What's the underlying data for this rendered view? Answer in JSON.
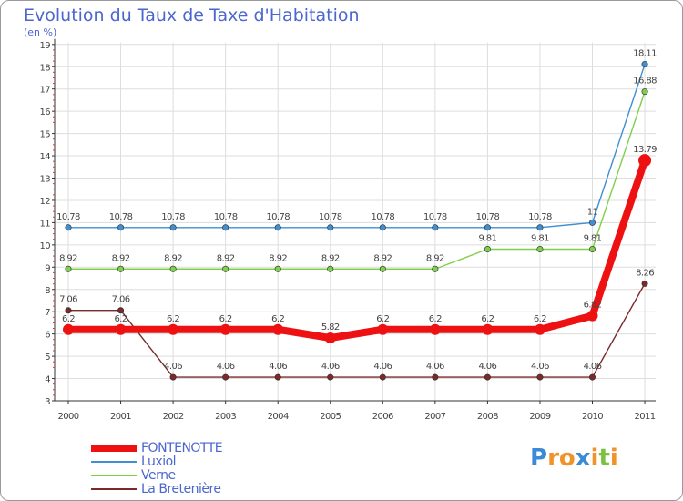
{
  "title": "Evolution du Taux de Taxe d'Habitation",
  "subtitle": "(en %)",
  "chart_data": {
    "type": "line",
    "title": "Evolution du Taux de Taxe d'Habitation",
    "ylabel": "(en %)",
    "x": [
      "2000",
      "2001",
      "2002",
      "2003",
      "2004",
      "2005",
      "2006",
      "2007",
      "2008",
      "2009",
      "2010",
      "2011"
    ],
    "ylim": [
      3,
      19
    ],
    "yticks": [
      3,
      4,
      5,
      6,
      7,
      8,
      9,
      10,
      11,
      12,
      13,
      14,
      15,
      16,
      17,
      18,
      19
    ],
    "series": [
      {
        "name": "Luxiol",
        "color": "#3f8fd1",
        "values": [
          10.78,
          10.78,
          10.78,
          10.78,
          10.78,
          10.78,
          10.78,
          10.78,
          10.78,
          10.78,
          11,
          18.11
        ],
        "labels": [
          "10.78",
          "10.78",
          "10.78",
          "10.78",
          "10.78",
          "10.78",
          "10.78",
          "10.78",
          "10.78",
          "10.78",
          "11",
          "18.11"
        ]
      },
      {
        "name": "Verne",
        "color": "#7ed04a",
        "values": [
          8.92,
          8.92,
          8.92,
          8.92,
          8.92,
          8.92,
          8.92,
          8.92,
          9.81,
          9.81,
          9.81,
          16.88
        ],
        "labels": [
          "8.92",
          "8.92",
          "8.92",
          "8.92",
          "8.92",
          "8.92",
          "8.92",
          "8.92",
          "9.81",
          "9.81",
          "9.81",
          "16.88"
        ]
      },
      {
        "name": "La Bretenière",
        "color": "#7a2a2a",
        "values": [
          7.06,
          7.06,
          4.06,
          4.06,
          4.06,
          4.06,
          4.06,
          4.06,
          4.06,
          4.06,
          4.06,
          8.26
        ],
        "labels": [
          "7.06",
          "7.06",
          "4.06",
          "4.06",
          "4.06",
          "4.06",
          "4.06",
          "4.06",
          "4.06",
          "4.06",
          "4.06",
          "8.26"
        ]
      },
      {
        "name": "FONTENOTTE",
        "color": "#ee1111",
        "values": [
          6.2,
          6.2,
          6.2,
          6.2,
          6.2,
          5.82,
          6.2,
          6.2,
          6.2,
          6.2,
          6.82,
          13.79
        ],
        "labels": [
          "6.2",
          "6.2",
          "6.2",
          "6.2",
          "6.2",
          "5.82",
          "6.2",
          "6.2",
          "6.2",
          "6.2",
          "6.82",
          "13.79"
        ]
      }
    ]
  },
  "legend": [
    {
      "name": "FONTENOTTE",
      "color": "#ee1111"
    },
    {
      "name": "Luxiol",
      "color": "#3f8fd1"
    },
    {
      "name": "Verne",
      "color": "#7ed04a"
    },
    {
      "name": "La Bretenière",
      "color": "#7a2a2a"
    }
  ],
  "logo": {
    "text": "Proxiti",
    "letters": [
      "P",
      "r",
      "o",
      "x",
      "i",
      "t",
      "i"
    ],
    "colors": [
      "#3a8ad6",
      "#f0932b",
      "#f0932b",
      "#3a8ad6",
      "#f0932b",
      "#7cc142",
      "#f0932b"
    ]
  }
}
